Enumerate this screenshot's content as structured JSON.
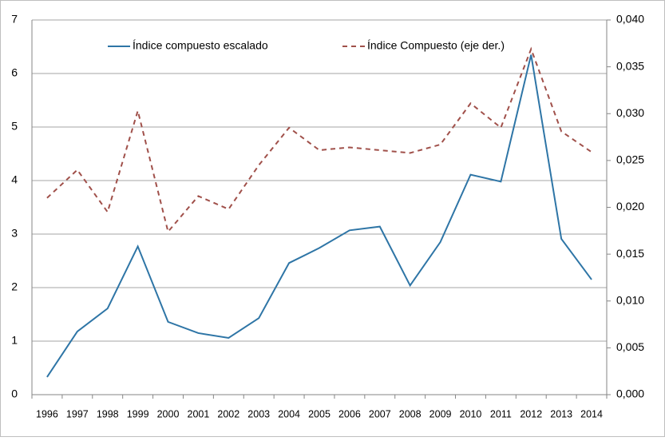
{
  "chart_data": {
    "type": "line",
    "categories": [
      "1996",
      "1997",
      "1998",
      "1999",
      "2000",
      "2001",
      "2002",
      "2003",
      "2004",
      "2005",
      "2006",
      "2007",
      "2008",
      "2009",
      "2010",
      "2011",
      "2012",
      "2013",
      "2014"
    ],
    "series": [
      {
        "name": "Índice compuesto escalado",
        "color": "#2e75a6",
        "dash": false,
        "values": [
          0.33,
          1.18,
          1.61,
          2.77,
          1.36,
          1.15,
          1.06,
          1.43,
          2.46,
          2.74,
          3.07,
          3.14,
          2.04,
          2.85,
          4.11,
          3.98,
          6.35,
          2.91,
          2.15
        ]
      },
      {
        "name": "Índice Compuesto (eje der.)",
        "color": "#a0504a",
        "dash": true,
        "axis": "y2",
        "values": [
          0.021,
          0.024,
          0.0195,
          0.0303,
          0.0174,
          0.0212,
          0.0198,
          0.0245,
          0.0285,
          0.0261,
          0.0264,
          0.0261,
          0.0258,
          0.0267,
          0.0311,
          0.0285,
          0.0369,
          0.0281,
          0.0259
        ]
      }
    ],
    "ylim": [
      0,
      7
    ],
    "yticks": [
      0,
      1,
      2,
      3,
      4,
      5,
      6,
      7
    ],
    "y2lim": [
      0,
      0.04
    ],
    "y2ticks": [
      {
        "value": 0,
        "label": "0,000"
      },
      {
        "value": 0.005,
        "label": "0,005"
      },
      {
        "value": 0.01,
        "label": "0,010"
      },
      {
        "value": 0.015,
        "label": "0,015"
      },
      {
        "value": 0.02,
        "label": "0,020"
      },
      {
        "value": 0.025,
        "label": "0,025"
      },
      {
        "value": 0.03,
        "label": "0,030"
      },
      {
        "value": 0.035,
        "label": "0,035"
      },
      {
        "value": 0.04,
        "label": "0,040"
      }
    ],
    "grid": true
  }
}
